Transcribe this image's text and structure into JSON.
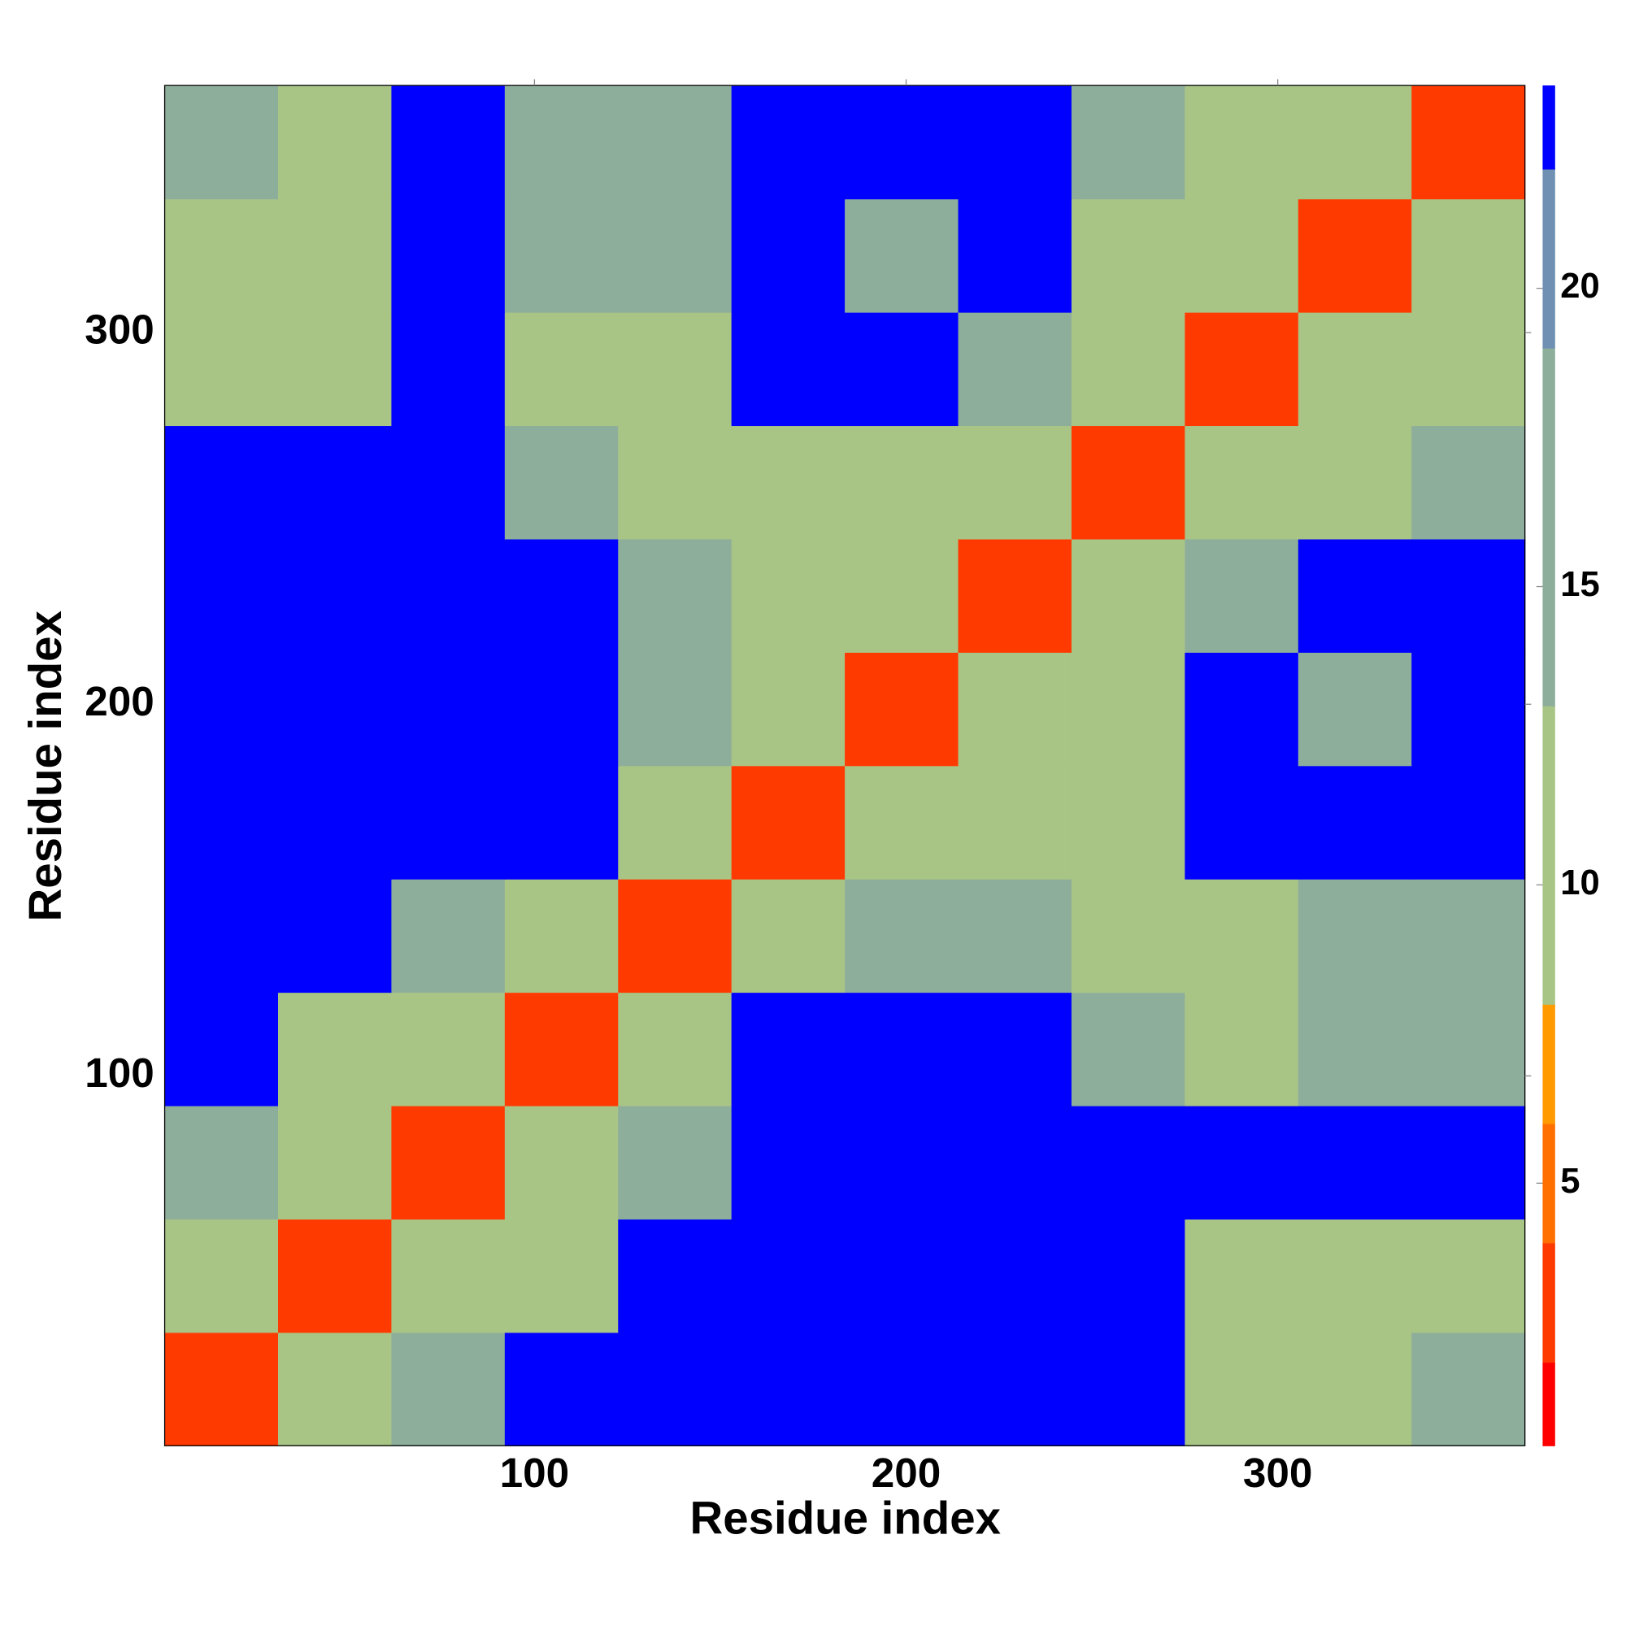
{
  "chart_data": {
    "type": "heatmap",
    "xlabel": "Residue index",
    "ylabel": "Residue index",
    "xlim": [
      0.5,
      366.5
    ],
    "ylim": [
      0.5,
      366.5
    ],
    "xticks": [
      100,
      200,
      300
    ],
    "yticks": [
      100,
      200,
      300
    ],
    "z": [
      [
        4,
        13,
        18,
        23,
        23,
        23,
        23,
        23,
        23,
        13,
        13,
        18
      ],
      [
        13,
        4,
        13,
        13,
        23,
        23,
        23,
        23,
        23,
        13,
        13,
        13
      ],
      [
        18,
        13,
        4,
        13,
        18,
        23,
        23,
        23,
        23,
        23,
        23,
        23
      ],
      [
        23,
        13,
        13,
        4,
        13,
        23,
        23,
        23,
        18,
        13,
        18,
        18
      ],
      [
        23,
        23,
        18,
        13,
        4,
        13,
        18,
        18,
        13,
        13,
        18,
        18
      ],
      [
        23,
        23,
        23,
        23,
        13,
        4,
        13,
        13,
        13,
        23,
        23,
        23
      ],
      [
        23,
        23,
        23,
        23,
        18,
        13,
        4,
        13,
        13,
        23,
        18,
        23
      ],
      [
        23,
        23,
        23,
        23,
        18,
        13,
        13,
        4,
        13,
        18,
        23,
        23
      ],
      [
        23,
        23,
        23,
        18,
        13,
        13,
        13,
        13,
        4,
        13,
        13,
        18
      ],
      [
        13,
        13,
        23,
        13,
        13,
        23,
        23,
        18,
        13,
        4,
        13,
        13
      ],
      [
        13,
        13,
        23,
        18,
        18,
        23,
        18,
        23,
        13,
        13,
        4,
        13
      ],
      [
        18,
        13,
        23,
        18,
        18,
        23,
        23,
        23,
        18,
        13,
        13,
        4
      ]
    ],
    "clim": [
      0.6,
      23.4
    ],
    "cticks": [
      5,
      10,
      15,
      20
    ],
    "levels": [
      0.6,
      2,
      4,
      6,
      8,
      13,
      19,
      22,
      23.4
    ],
    "colors": [
      "#ff0000",
      "#ff3a00",
      "#ff7000",
      "#ff9a00",
      "#a9c585",
      "#8eae9c",
      "#6f90b2",
      "#0000ff"
    ]
  }
}
